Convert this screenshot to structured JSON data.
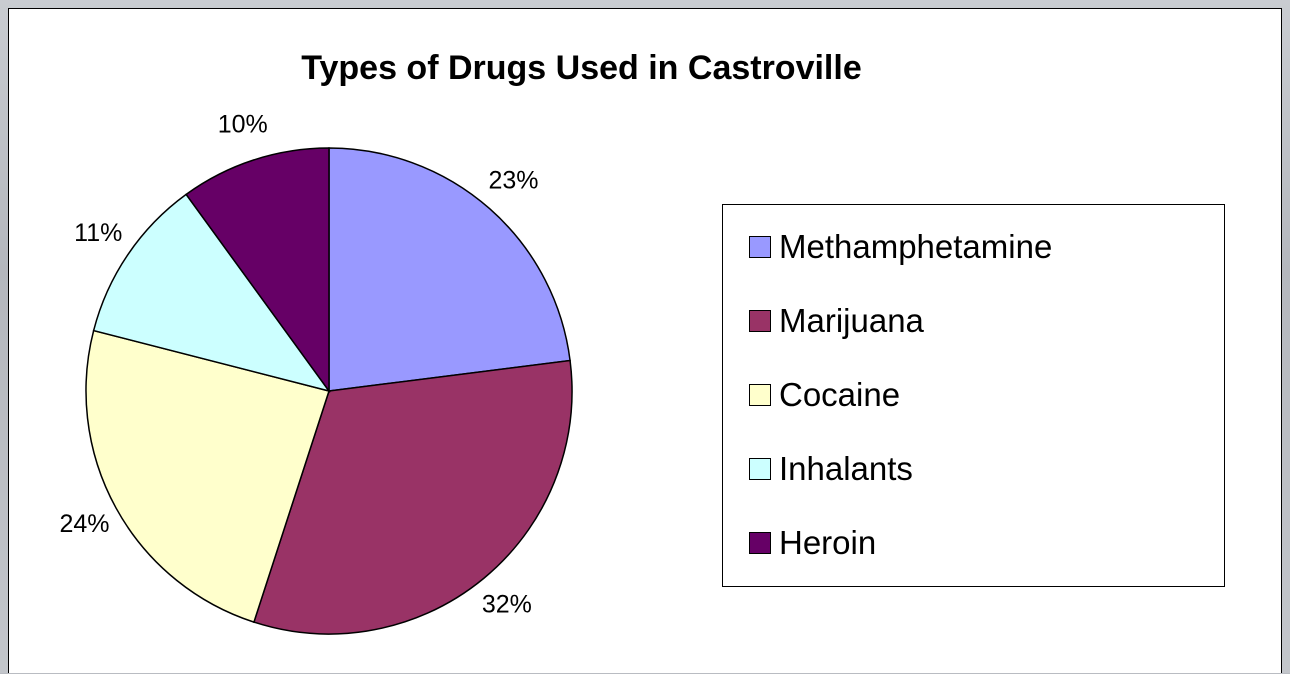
{
  "chart_data": {
    "type": "pie",
    "title": "Types of Drugs Used in Castroville",
    "categories": [
      "Methamphetamine",
      "Marijuana",
      "Cocaine",
      "Inhalants",
      "Heroin"
    ],
    "values": [
      23,
      32,
      24,
      11,
      10
    ],
    "value_labels": [
      "23%",
      "32%",
      "24%",
      "11%",
      "10%"
    ],
    "colors": [
      "#9999ff",
      "#993366",
      "#ffffcc",
      "#ccffff",
      "#660066"
    ],
    "legend_position": "right",
    "legend": [
      {
        "label": "Methamphetamine",
        "color": "#9999ff"
      },
      {
        "label": "Marijuana",
        "color": "#993366"
      },
      {
        "label": "Cocaine",
        "color": "#ffffcc"
      },
      {
        "label": "Inhalants",
        "color": "#ccffff"
      },
      {
        "label": "Heroin",
        "color": "#660066"
      }
    ]
  }
}
